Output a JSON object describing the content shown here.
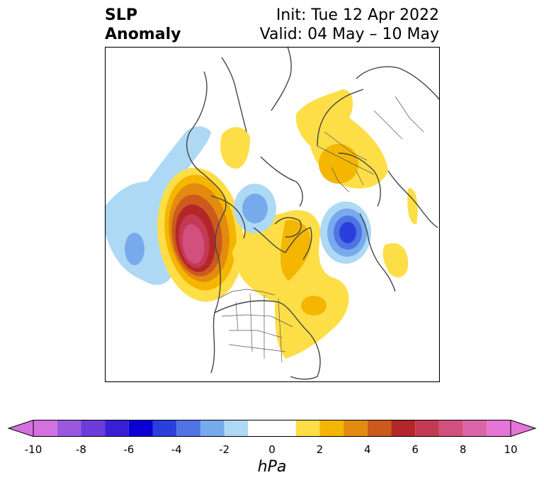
{
  "title": {
    "left_line1": "SLP",
    "left_line2": "Anomaly",
    "right_line1": "Init: Tue 12 Apr 2022",
    "right_line2": "Valid: 04 May – 10 May"
  },
  "colorbar": {
    "unit": "hPa",
    "ticks": [
      "-10",
      "-8",
      "-6",
      "-4",
      "-2",
      "0",
      "2",
      "4",
      "6",
      "8",
      "10"
    ],
    "levels": [
      -10,
      -9,
      -8,
      -7,
      -6,
      -5,
      -4,
      -3,
      -2,
      -1,
      1,
      2,
      3,
      4,
      5,
      6,
      7,
      8,
      9,
      10
    ],
    "colors": [
      "#d471e0",
      "#9a57df",
      "#6c3ddb",
      "#3a1fd6",
      "#0b00d3",
      "#2b3fdc",
      "#4f74e3",
      "#77aaed",
      "#aed9f5",
      "#ffffff",
      "#fede47",
      "#f4b600",
      "#e28b0f",
      "#cc5a1c",
      "#b42728",
      "#c43a55",
      "#d2507d",
      "#dc64a8",
      "#e576d6"
    ]
  },
  "chart_data": {
    "type": "heatmap",
    "variable": "SLP Anomaly",
    "units": "hPa",
    "range": [
      -10,
      10
    ],
    "features": [
      {
        "name": "northeast Pacific / Alaska high",
        "peak_hpa": 9
      },
      {
        "name": "north Atlantic low near Greenland-Iceland",
        "peak_hpa": -6
      },
      {
        "name": "Bering / Chukchi low",
        "peak_hpa": -3
      },
      {
        "name": "central Pacific low",
        "peak_hpa": -3
      },
      {
        "name": "western Siberia high",
        "peak_hpa": 3
      },
      {
        "name": "eastern Canada / Labrador high",
        "peak_hpa": 3
      },
      {
        "name": "Hudson Bay high",
        "peak_hpa": 2
      },
      {
        "name": "eastern Siberia high",
        "peak_hpa": 1.5
      },
      {
        "name": "eastern Atlantic high",
        "peak_hpa": 1.5
      },
      {
        "name": "southwest Europe high",
        "peak_hpa": 1.5
      }
    ]
  }
}
